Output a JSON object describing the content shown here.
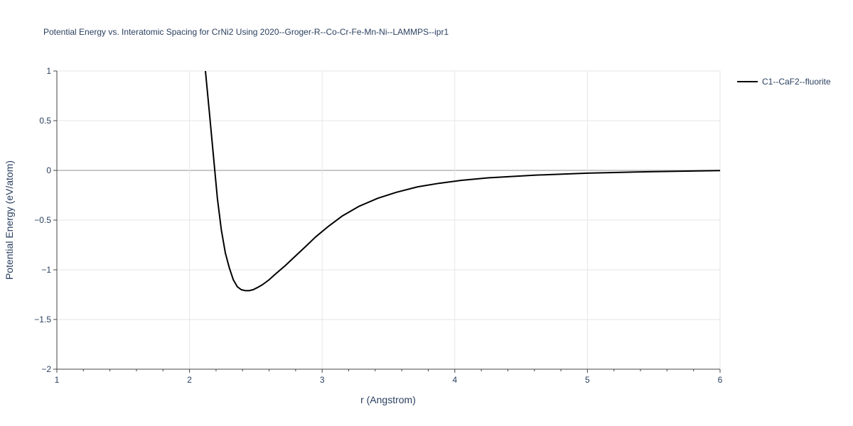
{
  "chart_data": {
    "type": "line",
    "title": "Potential Energy vs. Interatomic Spacing for CrNi2 Using 2020--Groger-R--Co-Cr-Fe-Mn-Ni--LAMMPS--ipr1",
    "xlabel": "r (Angstrom)",
    "ylabel": "Potential Energy (eV/atom)",
    "xlim": [
      1,
      6
    ],
    "ylim": [
      -2,
      1
    ],
    "x_ticks": [
      1,
      2,
      3,
      4,
      5,
      6
    ],
    "y_ticks": [
      1,
      0.5,
      0,
      -0.5,
      -1,
      -1.5,
      -2
    ],
    "y_tick_labels": [
      "1",
      "0.5",
      "0",
      "−0.5",
      "−1",
      "−1.5",
      "−2"
    ],
    "grid": true,
    "legend_position": "top-right",
    "series": [
      {
        "name": "C1--CaF2--fluorite",
        "color": "#000000",
        "x": [
          2.12,
          2.15,
          2.18,
          2.21,
          2.24,
          2.27,
          2.3,
          2.33,
          2.36,
          2.39,
          2.42,
          2.45,
          2.48,
          2.51,
          2.55,
          2.6,
          2.65,
          2.72,
          2.8,
          2.88,
          2.95,
          3.05,
          3.15,
          3.28,
          3.42,
          3.56,
          3.72,
          3.88,
          4.05,
          4.25,
          4.6,
          5.0,
          5.5,
          6.0
        ],
        "y": [
          1.0,
          0.58,
          0.15,
          -0.28,
          -0.6,
          -0.83,
          -0.98,
          -1.1,
          -1.17,
          -1.2,
          -1.21,
          -1.21,
          -1.2,
          -1.18,
          -1.15,
          -1.1,
          -1.04,
          -0.96,
          -0.86,
          -0.76,
          -0.67,
          -0.56,
          -0.46,
          -0.36,
          -0.28,
          -0.22,
          -0.165,
          -0.13,
          -0.1,
          -0.075,
          -0.048,
          -0.028,
          -0.012,
          -0.002
        ]
      }
    ]
  }
}
